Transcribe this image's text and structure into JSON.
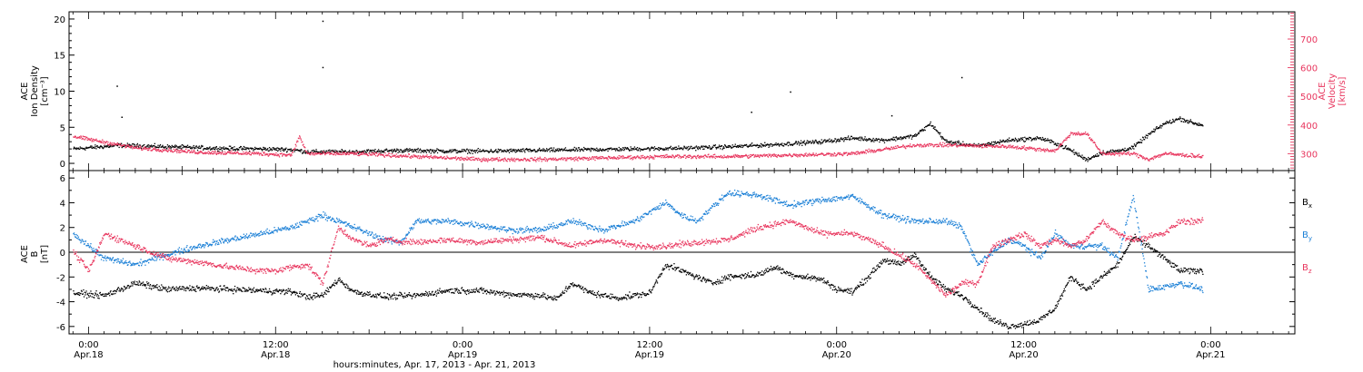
{
  "chart_data": [
    {
      "type": "scatter",
      "panel": "top",
      "ylabel_left": [
        "ACE",
        "Ion Density",
        "[cm⁻³]"
      ],
      "ylabel_right": [
        "ACE",
        "Velocity",
        "[km/s]"
      ],
      "ylim_left": [
        -1,
        21
      ],
      "yticks_left": [
        0,
        5,
        10,
        15,
        20
      ],
      "ylim_right": [
        241,
        795
      ],
      "yticks_right": [
        300,
        400,
        500,
        600,
        700
      ],
      "x_unit": "hours since Apr.17 23:00 (UT)",
      "series": [
        {
          "axis": "left",
          "color": "#000000",
          "points": [
            [
              0,
              2.0
            ],
            [
              3,
              2.5
            ],
            [
              6,
              2.3
            ],
            [
              9,
              2.1
            ],
            [
              12,
              2.0
            ],
            [
              14,
              1.9
            ],
            [
              15,
              1.6
            ],
            [
              18,
              1.6
            ],
            [
              21,
              1.8
            ],
            [
              24,
              1.7
            ],
            [
              27,
              1.7
            ],
            [
              30,
              1.8
            ],
            [
              33,
              1.9
            ],
            [
              36,
              2.0
            ],
            [
              39,
              2.1
            ],
            [
              42,
              2.3
            ],
            [
              45,
              2.6
            ],
            [
              48,
              3.0
            ],
            [
              50,
              3.5
            ],
            [
              52,
              3.2
            ],
            [
              54,
              3.8
            ],
            [
              55,
              5.5
            ],
            [
              56,
              3.0
            ],
            [
              58,
              2.4
            ],
            [
              60,
              3.2
            ],
            [
              62,
              3.5
            ],
            [
              63,
              2.8
            ],
            [
              64,
              1.8
            ],
            [
              65,
              0.5
            ],
            [
              66,
              1.5
            ],
            [
              67,
              1.7
            ],
            [
              68,
              2.2
            ],
            [
              69,
              4.0
            ],
            [
              70,
              5.5
            ],
            [
              71,
              6.2
            ],
            [
              72,
              5.5
            ],
            [
              72.5,
              5.3
            ]
          ],
          "outliers": [
            [
              2.8,
              10.7
            ],
            [
              3.1,
              6.4
            ],
            [
              16,
              19.7
            ],
            [
              16,
              13.3
            ],
            [
              46,
              9.9
            ],
            [
              57,
              11.9
            ],
            [
              43.5,
              7.1
            ],
            [
              52.5,
              6.6
            ]
          ]
        },
        {
          "axis": "right",
          "color": "#e8365e",
          "points": [
            [
              0,
              360
            ],
            [
              2,
              340
            ],
            [
              4,
              320
            ],
            [
              8,
              305
            ],
            [
              12,
              300
            ],
            [
              14,
              295
            ],
            [
              14.5,
              360
            ],
            [
              15,
              300
            ],
            [
              18,
              300
            ],
            [
              22,
              290
            ],
            [
              26,
              280
            ],
            [
              30,
              280
            ],
            [
              34,
              285
            ],
            [
              38,
              290
            ],
            [
              42,
              290
            ],
            [
              46,
              295
            ],
            [
              50,
              300
            ],
            [
              52,
              315
            ],
            [
              54,
              330
            ],
            [
              56,
              330
            ],
            [
              60,
              325
            ],
            [
              63,
              310
            ],
            [
              64,
              370
            ],
            [
              65,
              370
            ],
            [
              66,
              300
            ],
            [
              68,
              300
            ],
            [
              69,
              280
            ],
            [
              70,
              300
            ],
            [
              72.5,
              290
            ]
          ]
        }
      ]
    },
    {
      "type": "scatter",
      "panel": "bottom",
      "ylabel": [
        "ACE",
        "B",
        "[nT]"
      ],
      "ylim": [
        -6.6,
        6.6
      ],
      "yticks": [
        -6,
        -4,
        -2,
        0,
        2,
        4,
        6
      ],
      "x_unit": "hours since Apr.17 23:00 (UT)",
      "legend": [
        {
          "label": "B",
          "sub": "x",
          "color": "#000000"
        },
        {
          "label": "B",
          "sub": "y",
          "color": "#1a7fd6"
        },
        {
          "label": "B",
          "sub": "z",
          "color": "#e8365e"
        }
      ],
      "series": [
        {
          "name": "Bx",
          "color": "#000000",
          "points": [
            [
              0,
              -3.3
            ],
            [
              2,
              -3.5
            ],
            [
              4,
              -2.5
            ],
            [
              6,
              -3.0
            ],
            [
              8,
              -2.9
            ],
            [
              10,
              -3.0
            ],
            [
              12,
              -3.1
            ],
            [
              14,
              -3.2
            ],
            [
              15,
              -3.6
            ],
            [
              16,
              -3.5
            ],
            [
              17,
              -2.2
            ],
            [
              18,
              -3.2
            ],
            [
              20,
              -3.6
            ],
            [
              22,
              -3.5
            ],
            [
              24,
              -3.1
            ],
            [
              26,
              -3.1
            ],
            [
              28,
              -3.4
            ],
            [
              30,
              -3.5
            ],
            [
              31,
              -3.8
            ],
            [
              32,
              -2.5
            ],
            [
              33,
              -3.2
            ],
            [
              34,
              -3.5
            ],
            [
              35,
              -3.7
            ],
            [
              37,
              -3.3
            ],
            [
              38,
              -1.0
            ],
            [
              40,
              -2.0
            ],
            [
              41,
              -2.5
            ],
            [
              42,
              -2.0
            ],
            [
              44,
              -1.8
            ],
            [
              45,
              -1.2
            ],
            [
              46,
              -1.8
            ],
            [
              47,
              -2.0
            ],
            [
              48,
              -2.2
            ],
            [
              49,
              -3.0
            ],
            [
              50,
              -3.2
            ],
            [
              51,
              -2.0
            ],
            [
              52,
              -0.6
            ],
            [
              53,
              -1.0
            ],
            [
              54,
              -0.2
            ],
            [
              55,
              -2.0
            ],
            [
              56,
              -3.0
            ],
            [
              57,
              -3.5
            ],
            [
              58,
              -4.5
            ],
            [
              59,
              -5.5
            ],
            [
              60,
              -6.0
            ],
            [
              61,
              -5.8
            ],
            [
              62,
              -5.5
            ],
            [
              63,
              -4.5
            ],
            [
              64,
              -2.0
            ],
            [
              65,
              -3.0
            ],
            [
              66,
              -2.0
            ],
            [
              67,
              -1.0
            ],
            [
              68,
              1.2
            ],
            [
              69,
              0.5
            ],
            [
              70,
              -0.5
            ],
            [
              71,
              -1.5
            ],
            [
              72.5,
              -1.5
            ]
          ]
        },
        {
          "name": "By",
          "color": "#1a7fd6",
          "points": [
            [
              0,
              1.5
            ],
            [
              2,
              -0.5
            ],
            [
              4,
              -1.0
            ],
            [
              6,
              -0.2
            ],
            [
              8,
              0.5
            ],
            [
              10,
              1.0
            ],
            [
              12,
              1.5
            ],
            [
              14,
              2.0
            ],
            [
              15,
              2.5
            ],
            [
              16,
              3.0
            ],
            [
              17,
              2.5
            ],
            [
              18,
              2.0
            ],
            [
              19,
              1.5
            ],
            [
              20,
              1.0
            ],
            [
              21,
              0.8
            ],
            [
              22,
              2.5
            ],
            [
              24,
              2.5
            ],
            [
              26,
              2.2
            ],
            [
              28,
              1.8
            ],
            [
              30,
              1.8
            ],
            [
              32,
              2.5
            ],
            [
              34,
              1.8
            ],
            [
              36,
              2.5
            ],
            [
              38,
              4.0
            ],
            [
              39,
              3.0
            ],
            [
              40,
              2.5
            ],
            [
              42,
              4.8
            ],
            [
              44,
              4.6
            ],
            [
              46,
              3.8
            ],
            [
              48,
              4.2
            ],
            [
              50,
              4.5
            ],
            [
              52,
              3.0
            ],
            [
              54,
              2.5
            ],
            [
              56,
              2.5
            ],
            [
              57,
              2.0
            ],
            [
              58,
              -1.0
            ],
            [
              60,
              1.0
            ],
            [
              61,
              0.5
            ],
            [
              62,
              -0.5
            ],
            [
              63,
              1.5
            ],
            [
              64,
              0.5
            ],
            [
              66,
              0.5
            ],
            [
              67,
              -0.5
            ],
            [
              68,
              4.5
            ],
            [
              69,
              -3.0
            ],
            [
              70,
              -2.8
            ],
            [
              71,
              -2.5
            ],
            [
              72.5,
              -3.0
            ]
          ]
        },
        {
          "name": "Bz",
          "color": "#e8365e",
          "points": [
            [
              0,
              0.0
            ],
            [
              1,
              -1.5
            ],
            [
              2,
              1.5
            ],
            [
              3,
              1.0
            ],
            [
              4,
              0.5
            ],
            [
              6,
              -0.5
            ],
            [
              8,
              -0.8
            ],
            [
              10,
              -1.2
            ],
            [
              12,
              -1.5
            ],
            [
              13,
              -1.5
            ],
            [
              14,
              -1.2
            ],
            [
              15,
              -1.0
            ],
            [
              16,
              -2.5
            ],
            [
              17,
              2.0
            ],
            [
              18,
              1.0
            ],
            [
              19,
              0.5
            ],
            [
              20,
              1.0
            ],
            [
              22,
              0.8
            ],
            [
              24,
              1.0
            ],
            [
              26,
              0.8
            ],
            [
              28,
              1.0
            ],
            [
              30,
              1.2
            ],
            [
              32,
              0.5
            ],
            [
              34,
              1.0
            ],
            [
              36,
              0.5
            ],
            [
              38,
              0.5
            ],
            [
              40,
              0.8
            ],
            [
              42,
              1.0
            ],
            [
              44,
              2.0
            ],
            [
              46,
              2.5
            ],
            [
              48,
              1.5
            ],
            [
              50,
              1.5
            ],
            [
              52,
              0.5
            ],
            [
              54,
              -1.0
            ],
            [
              56,
              -3.5
            ],
            [
              57,
              -2.5
            ],
            [
              58,
              -2.5
            ],
            [
              59,
              0.5
            ],
            [
              60,
              1.0
            ],
            [
              61,
              1.5
            ],
            [
              62,
              0.5
            ],
            [
              63,
              1.0
            ],
            [
              64,
              0.5
            ],
            [
              65,
              1.0
            ],
            [
              66,
              2.5
            ],
            [
              67,
              1.5
            ],
            [
              68,
              1.0
            ],
            [
              70,
              1.5
            ],
            [
              71,
              2.5
            ],
            [
              72.5,
              2.5
            ]
          ]
        }
      ]
    }
  ],
  "x_axis": {
    "xlim": [
      -0.25,
      78.4
    ],
    "ticks": [
      {
        "hour": 1,
        "time": "0:00",
        "date": "Apr.18"
      },
      {
        "hour": 13,
        "time": "12:00",
        "date": "Apr.18"
      },
      {
        "hour": 25,
        "time": "0:00",
        "date": "Apr.19"
      },
      {
        "hour": 37,
        "time": "12:00",
        "date": "Apr.19"
      },
      {
        "hour": 49,
        "time": "0:00",
        "date": "Apr.20"
      },
      {
        "hour": 61,
        "time": "12:00",
        "date": "Apr.20"
      },
      {
        "hour": 73,
        "time": "0:00",
        "date": "Apr.21"
      }
    ],
    "minor_step_hours": 1,
    "label": "hours:minutes, Apr. 17, 2013 - Apr. 21, 2013"
  }
}
